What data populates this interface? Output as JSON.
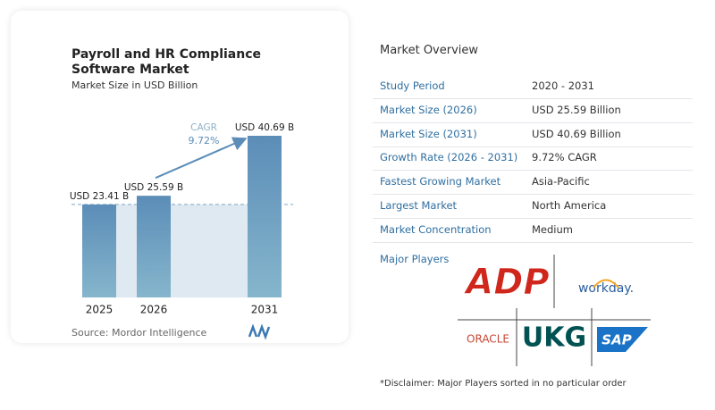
{
  "chart_data": {
    "type": "bar",
    "title": "Payroll and HR Compliance Software Market",
    "subtitle": "Market Size in USD Billion",
    "categories": [
      "2025",
      "2026",
      "2031"
    ],
    "values": [
      23.41,
      25.59,
      40.69
    ],
    "value_labels": [
      "USD 23.41 B",
      "USD 25.59 B",
      "USD 40.69 B"
    ],
    "color": "#5b8db8",
    "annotation": {
      "label": "CAGR",
      "value": "9.72%"
    }
  },
  "source": "Source: Mordor Intelligence",
  "market_overview": {
    "title": "Market Overview",
    "rows": [
      [
        "Study Period",
        "2020 - 2031"
      ],
      [
        "Market Size (2026)",
        "USD 25.59 Billion"
      ],
      [
        "Market Size (2031)",
        "USD 40.69 Billion"
      ],
      [
        "Growth Rate (2026 - 2031)",
        "9.72% CAGR"
      ],
      [
        "Fastest Growing Market",
        "Asia-Pacific"
      ],
      [
        "Largest Market",
        "North America"
      ],
      [
        "Market Concentration",
        "Medium"
      ]
    ]
  },
  "major_players": {
    "title": "Major Players",
    "logos": [
      "ADP",
      "workday.",
      "ORACLE",
      "UKG",
      "SAP"
    ]
  },
  "disclaimer": "*Disclaimer: Major Players sorted in no particular order"
}
